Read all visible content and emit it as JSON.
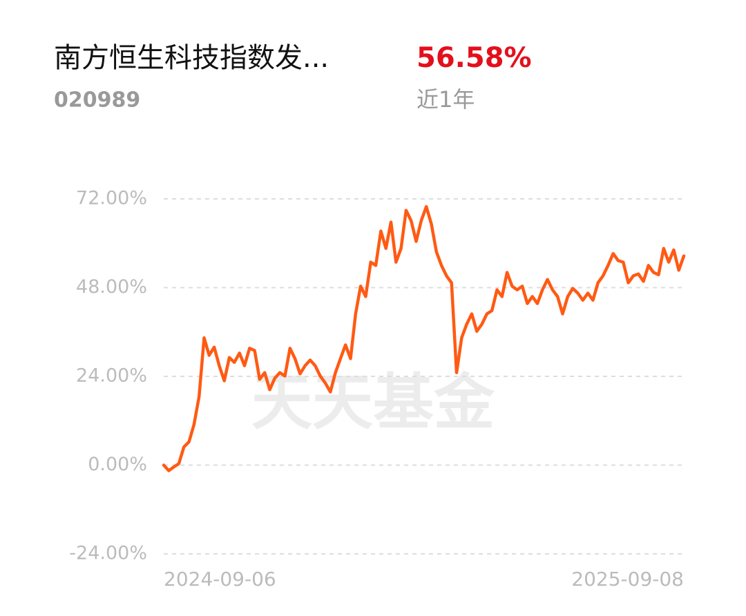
{
  "header": {
    "name": "南方恒生科技指数发...",
    "code": "020989",
    "return": "56.58%",
    "period": "近1年"
  },
  "chart_data": {
    "type": "line",
    "watermark": "天天基金",
    "categories": [
      "2024-09-06",
      null,
      null,
      null,
      null,
      null,
      null,
      null,
      null,
      null,
      null,
      null,
      null,
      null,
      null,
      null,
      null,
      null,
      null,
      null,
      null,
      null,
      null,
      null,
      null,
      null,
      null,
      null,
      null,
      null,
      null,
      null,
      null,
      null,
      null,
      null,
      null,
      null,
      null,
      null,
      null,
      null,
      null,
      null,
      null,
      null,
      null,
      null,
      null,
      null,
      null,
      null,
      null,
      null,
      null,
      null,
      null,
      null,
      null,
      null,
      null,
      null,
      null,
      null,
      null,
      null,
      null,
      null,
      null,
      null,
      null,
      null,
      null,
      null,
      null,
      null,
      null,
      null,
      null,
      null,
      null,
      null,
      null,
      null,
      null,
      null,
      null,
      null,
      null,
      null,
      null,
      null,
      null,
      null,
      null,
      null,
      null,
      null,
      null,
      null,
      null,
      null,
      null,
      "2025-09-08"
    ],
    "values": [
      0,
      -1.5,
      -0.5,
      0.4,
      4.9,
      6.3,
      11,
      18.5,
      34.4,
      29.7,
      31.9,
      26.9,
      22.8,
      29.1,
      27.8,
      30.3,
      26.9,
      31.6,
      31,
      23.2,
      25,
      20.4,
      23.5,
      25,
      24.1,
      31.6,
      28.8,
      24.7,
      26.9,
      28.4,
      26.9,
      24.1,
      22.2,
      19.8,
      25,
      28.8,
      32.5,
      28.8,
      40.9,
      48.4,
      45.6,
      54.9,
      54,
      63.3,
      58.6,
      65.7,
      54.9,
      58.6,
      68.9,
      66.1,
      60.5,
      66.1,
      69.9,
      65.2,
      57.7,
      54,
      51.2,
      49.3,
      25,
      34.4,
      38.1,
      40.9,
      36.2,
      38.1,
      40.9,
      41.8,
      47.4,
      45.6,
      52.1,
      48.4,
      47.4,
      48.4,
      43.7,
      45.6,
      43.7,
      47.4,
      50.2,
      47.4,
      45.6,
      40.9,
      45.6,
      47.8,
      46.5,
      44.6,
      46.5,
      44.6,
      49.3,
      51.2,
      54,
      57.2,
      55.3,
      54.9,
      49.3,
      51.2,
      51.7,
      49.7,
      54,
      52.1,
      51.5,
      58.6,
      54.9,
      58.2,
      52.7,
      56.58
    ],
    "color": "#ff5a14",
    "ylim": [
      -24,
      72
    ],
    "yticks": [
      {
        "value": -24,
        "label": "-24.00%"
      },
      {
        "value": 0,
        "label": "0.00%"
      },
      {
        "value": 24,
        "label": "24.00%"
      },
      {
        "value": 48,
        "label": "48.00%"
      },
      {
        "value": 72,
        "label": "72.00%"
      }
    ],
    "grid": true
  }
}
